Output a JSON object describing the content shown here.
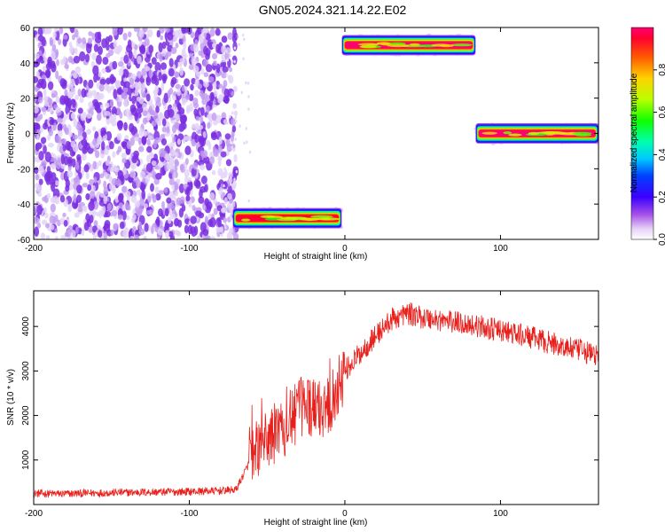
{
  "title": "GN05.2024.321.14.22.E02",
  "chart_data": [
    {
      "type": "heatmap",
      "xlabel": "Height of straight line (km)",
      "ylabel": "Frequency (Hz)",
      "xlim": [
        -200,
        163
      ],
      "ylim": [
        -60,
        60
      ],
      "xticks": [
        -200,
        -100,
        0,
        100
      ],
      "yticks": [
        -60,
        -40,
        -20,
        0,
        20,
        40,
        60
      ],
      "colorbar": {
        "label": "Normalized spectral amplitude",
        "range": [
          0,
          1
        ],
        "ticks": [
          0.0,
          0.2,
          0.4,
          0.6,
          0.8
        ]
      },
      "regions": [
        {
          "name": "noise",
          "x_range": [
            -200,
            -70
          ],
          "y_range": [
            -60,
            60
          ],
          "amplitude": 0.08
        },
        {
          "name": "band-negative",
          "x_range": [
            -72,
            -2
          ],
          "center_hz": -48,
          "width_hz": 5,
          "amplitude": 0.95
        },
        {
          "name": "band-positive",
          "x_range": [
            -2,
            84
          ],
          "center_hz": 50,
          "width_hz": 5,
          "amplitude": 1.0
        },
        {
          "name": "band-zero",
          "x_range": [
            84,
            163
          ],
          "center_hz": 0,
          "width_hz": 5,
          "amplitude": 1.0
        }
      ],
      "grid": false
    },
    {
      "type": "line",
      "xlabel": "Height of straight line (km)",
      "ylabel": "SNR (10 * v/v)",
      "xlim": [
        -200,
        163
      ],
      "ylim": [
        0,
        4800
      ],
      "xticks": [
        -200,
        -100,
        0,
        100
      ],
      "yticks": [
        1000,
        2000,
        3000,
        4000
      ],
      "series": [
        {
          "color": "#e8201c",
          "x": [
            -200,
            -180,
            -160,
            -140,
            -120,
            -100,
            -80,
            -70,
            -62,
            -55,
            -45,
            -35,
            -25,
            -18,
            -10,
            -5,
            0,
            10,
            20,
            30,
            40,
            50,
            60,
            80,
            100,
            120,
            140,
            163
          ],
          "values": [
            250,
            240,
            260,
            270,
            280,
            290,
            310,
            330,
            900,
            1300,
            1600,
            1900,
            2300,
            2100,
            2300,
            2600,
            3000,
            3400,
            3800,
            4150,
            4300,
            4200,
            4150,
            4050,
            3900,
            3750,
            3550,
            3350
          ]
        }
      ],
      "grid": false
    }
  ]
}
